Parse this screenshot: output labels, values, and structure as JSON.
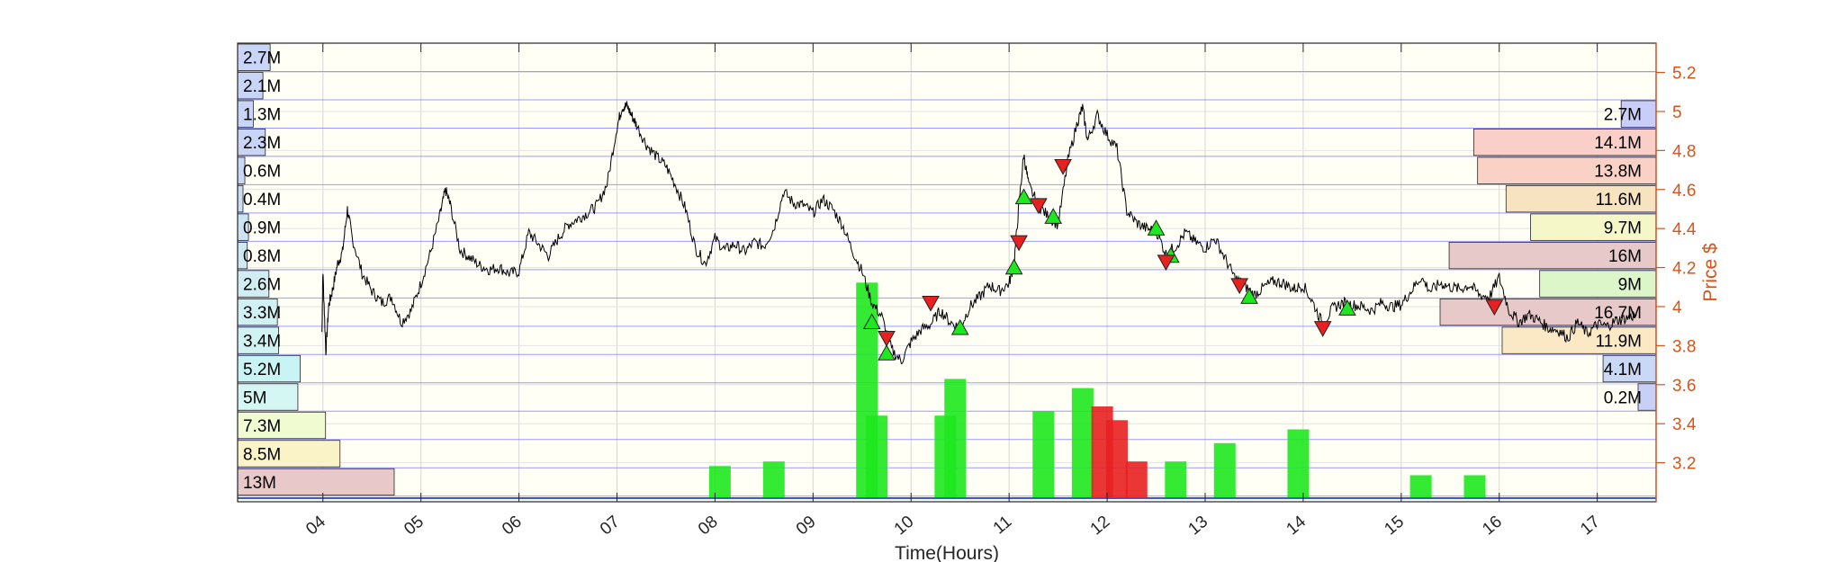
{
  "chart_data": {
    "type": "line",
    "title": "",
    "xlabel": "Time(Hours)",
    "ylabel": "Price $",
    "x_ticks": [
      "04",
      "05",
      "06",
      "07",
      "08",
      "09",
      "10",
      "11",
      "12",
      "13",
      "14",
      "15",
      "16",
      "17"
    ],
    "x_range": [
      3.13,
      17.6
    ],
    "y_ticks": [
      3.2,
      3.4,
      3.6,
      3.8,
      4,
      4.2,
      4.4,
      4.6,
      4.8,
      5,
      5.2
    ],
    "y_tick_labels": [
      "3.2",
      "3.4",
      "3.6",
      "3.8",
      "4",
      "4.2",
      "4.4",
      "4.6",
      "4.8",
      "5",
      "5.2"
    ],
    "y_range": [
      3.0,
      5.35
    ],
    "grid": true,
    "colors": {
      "price_line": "#000000",
      "axis_right": "#d95319",
      "grid": "#d9d9d9",
      "price_level_lines": "#6b6bff",
      "volume_up": "#1ee81e",
      "volume_down": "#e82020",
      "buy_marker": "#1ee81e",
      "sell_marker": "#e82020"
    },
    "series": [
      {
        "kind": "price",
        "points": [
          [
            3.99,
            3.87
          ],
          [
            4.0,
            4.18
          ],
          [
            4.03,
            3.77
          ],
          [
            4.06,
            4.01
          ],
          [
            4.1,
            4.09
          ],
          [
            4.15,
            4.22
          ],
          [
            4.2,
            4.28
          ],
          [
            4.25,
            4.5
          ],
          [
            4.3,
            4.35
          ],
          [
            4.4,
            4.17
          ],
          [
            4.5,
            4.08
          ],
          [
            4.6,
            4.02
          ],
          [
            4.7,
            4.05
          ],
          [
            4.8,
            3.92
          ],
          [
            4.9,
            3.98
          ],
          [
            5.0,
            4.12
          ],
          [
            5.1,
            4.28
          ],
          [
            5.2,
            4.48
          ],
          [
            5.25,
            4.6
          ],
          [
            5.3,
            4.52
          ],
          [
            5.4,
            4.29
          ],
          [
            5.5,
            4.25
          ],
          [
            5.6,
            4.21
          ],
          [
            5.7,
            4.19
          ],
          [
            5.8,
            4.2
          ],
          [
            5.9,
            4.17
          ],
          [
            6.0,
            4.18
          ],
          [
            6.1,
            4.38
          ],
          [
            6.2,
            4.32
          ],
          [
            6.3,
            4.26
          ],
          [
            6.4,
            4.35
          ],
          [
            6.5,
            4.42
          ],
          [
            6.6,
            4.45
          ],
          [
            6.7,
            4.48
          ],
          [
            6.8,
            4.52
          ],
          [
            6.9,
            4.63
          ],
          [
            7.0,
            4.92
          ],
          [
            7.05,
            5.02
          ],
          [
            7.1,
            5.03
          ],
          [
            7.15,
            4.98
          ],
          [
            7.2,
            4.93
          ],
          [
            7.3,
            4.83
          ],
          [
            7.4,
            4.77
          ],
          [
            7.5,
            4.72
          ],
          [
            7.6,
            4.62
          ],
          [
            7.7,
            4.5
          ],
          [
            7.8,
            4.3
          ],
          [
            7.9,
            4.22
          ],
          [
            8.0,
            4.35
          ],
          [
            8.1,
            4.29
          ],
          [
            8.2,
            4.32
          ],
          [
            8.3,
            4.28
          ],
          [
            8.4,
            4.33
          ],
          [
            8.5,
            4.31
          ],
          [
            8.6,
            4.4
          ],
          [
            8.7,
            4.59
          ],
          [
            8.8,
            4.53
          ],
          [
            8.9,
            4.52
          ],
          [
            9.0,
            4.48
          ],
          [
            9.1,
            4.55
          ],
          [
            9.2,
            4.5
          ],
          [
            9.3,
            4.42
          ],
          [
            9.4,
            4.29
          ],
          [
            9.5,
            4.18
          ],
          [
            9.6,
            4.02
          ],
          [
            9.7,
            3.95
          ],
          [
            9.8,
            3.78
          ],
          [
            9.9,
            3.72
          ],
          [
            10.0,
            3.82
          ],
          [
            10.1,
            3.88
          ],
          [
            10.2,
            3.91
          ],
          [
            10.3,
            3.98
          ],
          [
            10.4,
            3.92
          ],
          [
            10.5,
            3.89
          ],
          [
            10.6,
            4.0
          ],
          [
            10.7,
            4.05
          ],
          [
            10.8,
            4.11
          ],
          [
            10.9,
            4.08
          ],
          [
            11.0,
            4.12
          ],
          [
            11.05,
            4.22
          ],
          [
            11.1,
            4.52
          ],
          [
            11.15,
            4.78
          ],
          [
            11.2,
            4.62
          ],
          [
            11.3,
            4.52
          ],
          [
            11.4,
            4.46
          ],
          [
            11.5,
            4.42
          ],
          [
            11.6,
            4.75
          ],
          [
            11.7,
            4.95
          ],
          [
            11.75,
            5.02
          ],
          [
            11.8,
            4.85
          ],
          [
            11.9,
            4.98
          ],
          [
            12.0,
            4.88
          ],
          [
            12.1,
            4.81
          ],
          [
            12.2,
            4.49
          ],
          [
            12.3,
            4.43
          ],
          [
            12.4,
            4.4
          ],
          [
            12.5,
            4.39
          ],
          [
            12.6,
            4.27
          ],
          [
            12.7,
            4.31
          ],
          [
            12.8,
            4.38
          ],
          [
            12.9,
            4.33
          ],
          [
            13.0,
            4.3
          ],
          [
            13.1,
            4.35
          ],
          [
            13.2,
            4.25
          ],
          [
            13.3,
            4.15
          ],
          [
            13.4,
            4.11
          ],
          [
            13.5,
            4.06
          ],
          [
            13.6,
            4.1
          ],
          [
            13.7,
            4.13
          ],
          [
            13.8,
            4.12
          ],
          [
            13.9,
            4.09
          ],
          [
            14.0,
            4.11
          ],
          [
            14.1,
            4.02
          ],
          [
            14.2,
            3.91
          ],
          [
            14.3,
            3.99
          ],
          [
            14.4,
            4.02
          ],
          [
            14.5,
            4.01
          ],
          [
            14.6,
            4.0
          ],
          [
            14.7,
            3.98
          ],
          [
            14.8,
            4.02
          ],
          [
            14.9,
            4.0
          ],
          [
            15.0,
            4.01
          ],
          [
            15.1,
            4.08
          ],
          [
            15.2,
            4.15
          ],
          [
            15.3,
            4.08
          ],
          [
            15.4,
            4.12
          ],
          [
            15.5,
            4.1
          ],
          [
            15.6,
            4.09
          ],
          [
            15.7,
            4.11
          ],
          [
            15.8,
            4.06
          ],
          [
            15.9,
            4.05
          ],
          [
            16.0,
            4.15
          ],
          [
            16.1,
            3.98
          ],
          [
            16.2,
            3.92
          ],
          [
            16.3,
            3.96
          ],
          [
            16.4,
            3.93
          ],
          [
            16.5,
            3.89
          ],
          [
            16.6,
            3.88
          ],
          [
            16.7,
            3.84
          ],
          [
            16.8,
            3.92
          ],
          [
            16.9,
            3.86
          ],
          [
            17.0,
            3.91
          ],
          [
            17.1,
            3.9
          ],
          [
            17.2,
            3.93
          ],
          [
            17.3,
            3.94
          ],
          [
            17.4,
            3.96
          ]
        ]
      }
    ],
    "volume_bars": [
      {
        "x": 9.55,
        "h": 0.47,
        "c": "up"
      },
      {
        "x": 9.65,
        "h": 0.18,
        "c": "up"
      },
      {
        "x": 10.35,
        "h": 0.18,
        "c": "up"
      },
      {
        "x": 10.45,
        "h": 0.26,
        "c": "up"
      },
      {
        "x": 11.35,
        "h": 0.19,
        "c": "up"
      },
      {
        "x": 11.75,
        "h": 0.24,
        "c": "up"
      },
      {
        "x": 11.95,
        "h": 0.2,
        "c": "down"
      },
      {
        "x": 12.1,
        "h": 0.17,
        "c": "down"
      },
      {
        "x": 12.3,
        "h": 0.08,
        "c": "down"
      },
      {
        "x": 12.7,
        "h": 0.08,
        "c": "up"
      },
      {
        "x": 13.2,
        "h": 0.12,
        "c": "up"
      },
      {
        "x": 13.95,
        "h": 0.15,
        "c": "up"
      },
      {
        "x": 8.6,
        "h": 0.08,
        "c": "up"
      },
      {
        "x": 8.05,
        "h": 0.07,
        "c": "up"
      },
      {
        "x": 15.2,
        "h": 0.05,
        "c": "up"
      },
      {
        "x": 15.75,
        "h": 0.05,
        "c": "up"
      }
    ],
    "buy_markers": [
      [
        9.6,
        3.92
      ],
      [
        9.75,
        3.76
      ],
      [
        10.5,
        3.89
      ],
      [
        11.05,
        4.2
      ],
      [
        11.15,
        4.56
      ],
      [
        11.45,
        4.46
      ],
      [
        12.5,
        4.4
      ],
      [
        12.65,
        4.26
      ],
      [
        13.45,
        4.05
      ],
      [
        14.45,
        3.99
      ]
    ],
    "sell_markers": [
      [
        9.75,
        3.84
      ],
      [
        10.2,
        4.02
      ],
      [
        11.1,
        4.33
      ],
      [
        11.3,
        4.52
      ],
      [
        11.55,
        4.72
      ],
      [
        12.6,
        4.23
      ],
      [
        13.35,
        4.11
      ],
      [
        14.2,
        3.89
      ],
      [
        15.95,
        4.0
      ]
    ],
    "left_profile": [
      {
        "label": "2.7M",
        "v": 2.7
      },
      {
        "label": "2.1M",
        "v": 2.1
      },
      {
        "label": "1.3M",
        "v": 1.3
      },
      {
        "label": "2.3M",
        "v": 2.3
      },
      {
        "label": "0.6M",
        "v": 0.6
      },
      {
        "label": "0.4M",
        "v": 0.4
      },
      {
        "label": "0.9M",
        "v": 0.9
      },
      {
        "label": "0.8M",
        "v": 0.8
      },
      {
        "label": "2.6M",
        "v": 2.6
      },
      {
        "label": "3.3M",
        "v": 3.3
      },
      {
        "label": "3.4M",
        "v": 3.4
      },
      {
        "label": "5.2M",
        "v": 5.2
      },
      {
        "label": "5M",
        "v": 5.0
      },
      {
        "label": "7.3M",
        "v": 7.3
      },
      {
        "label": "8.5M",
        "v": 8.5
      },
      {
        "label": "13M",
        "v": 13.0
      }
    ],
    "right_profile": [
      {
        "label": "2.7M",
        "v": 2.7,
        "color": "#c8cef8"
      },
      {
        "label": "14.1M",
        "v": 14.1,
        "color": "#f9cfc7"
      },
      {
        "label": "13.8M",
        "v": 13.8,
        "color": "#f9d2c5"
      },
      {
        "label": "11.6M",
        "v": 11.6,
        "color": "#f8e3c0"
      },
      {
        "label": "9.7M",
        "v": 9.7,
        "color": "#f6f7c8"
      },
      {
        "label": "16M",
        "v": 16.0,
        "color": "#e7c9c9"
      },
      {
        "label": "9M",
        "v": 9.0,
        "color": "#dcf6c9"
      },
      {
        "label": "16.7M",
        "v": 16.7,
        "color": "#e7c9c9"
      },
      {
        "label": "11.9M",
        "v": 11.9,
        "color": "#fbe9c6"
      },
      {
        "label": "4.1M",
        "v": 4.1,
        "color": "#c9d8f4"
      },
      {
        "label": "0.2M",
        "v": 0.2,
        "color": "#c9d0f5"
      }
    ]
  }
}
